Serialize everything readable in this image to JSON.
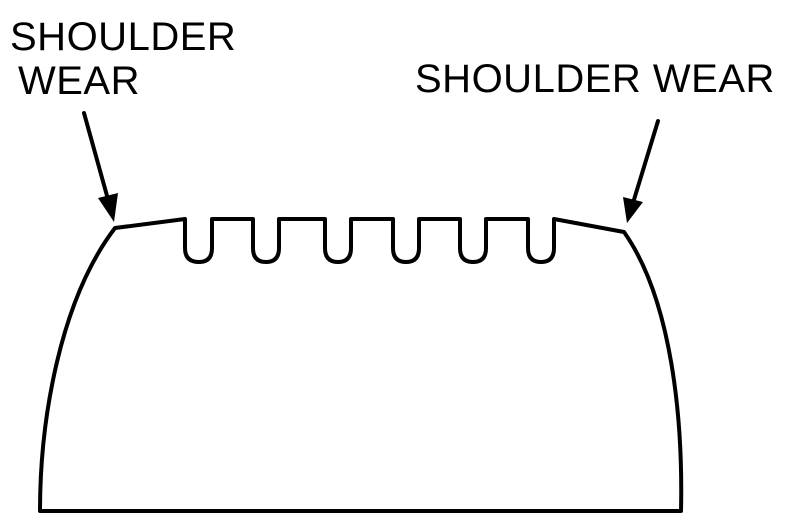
{
  "labels": {
    "left_line1": "SHOULDER",
    "left_line2": "WEAR",
    "right": "SHOULDER WEAR"
  },
  "colors": {
    "ink": "#000000",
    "background": "#ffffff"
  },
  "tread": {
    "groove_count": 6
  }
}
